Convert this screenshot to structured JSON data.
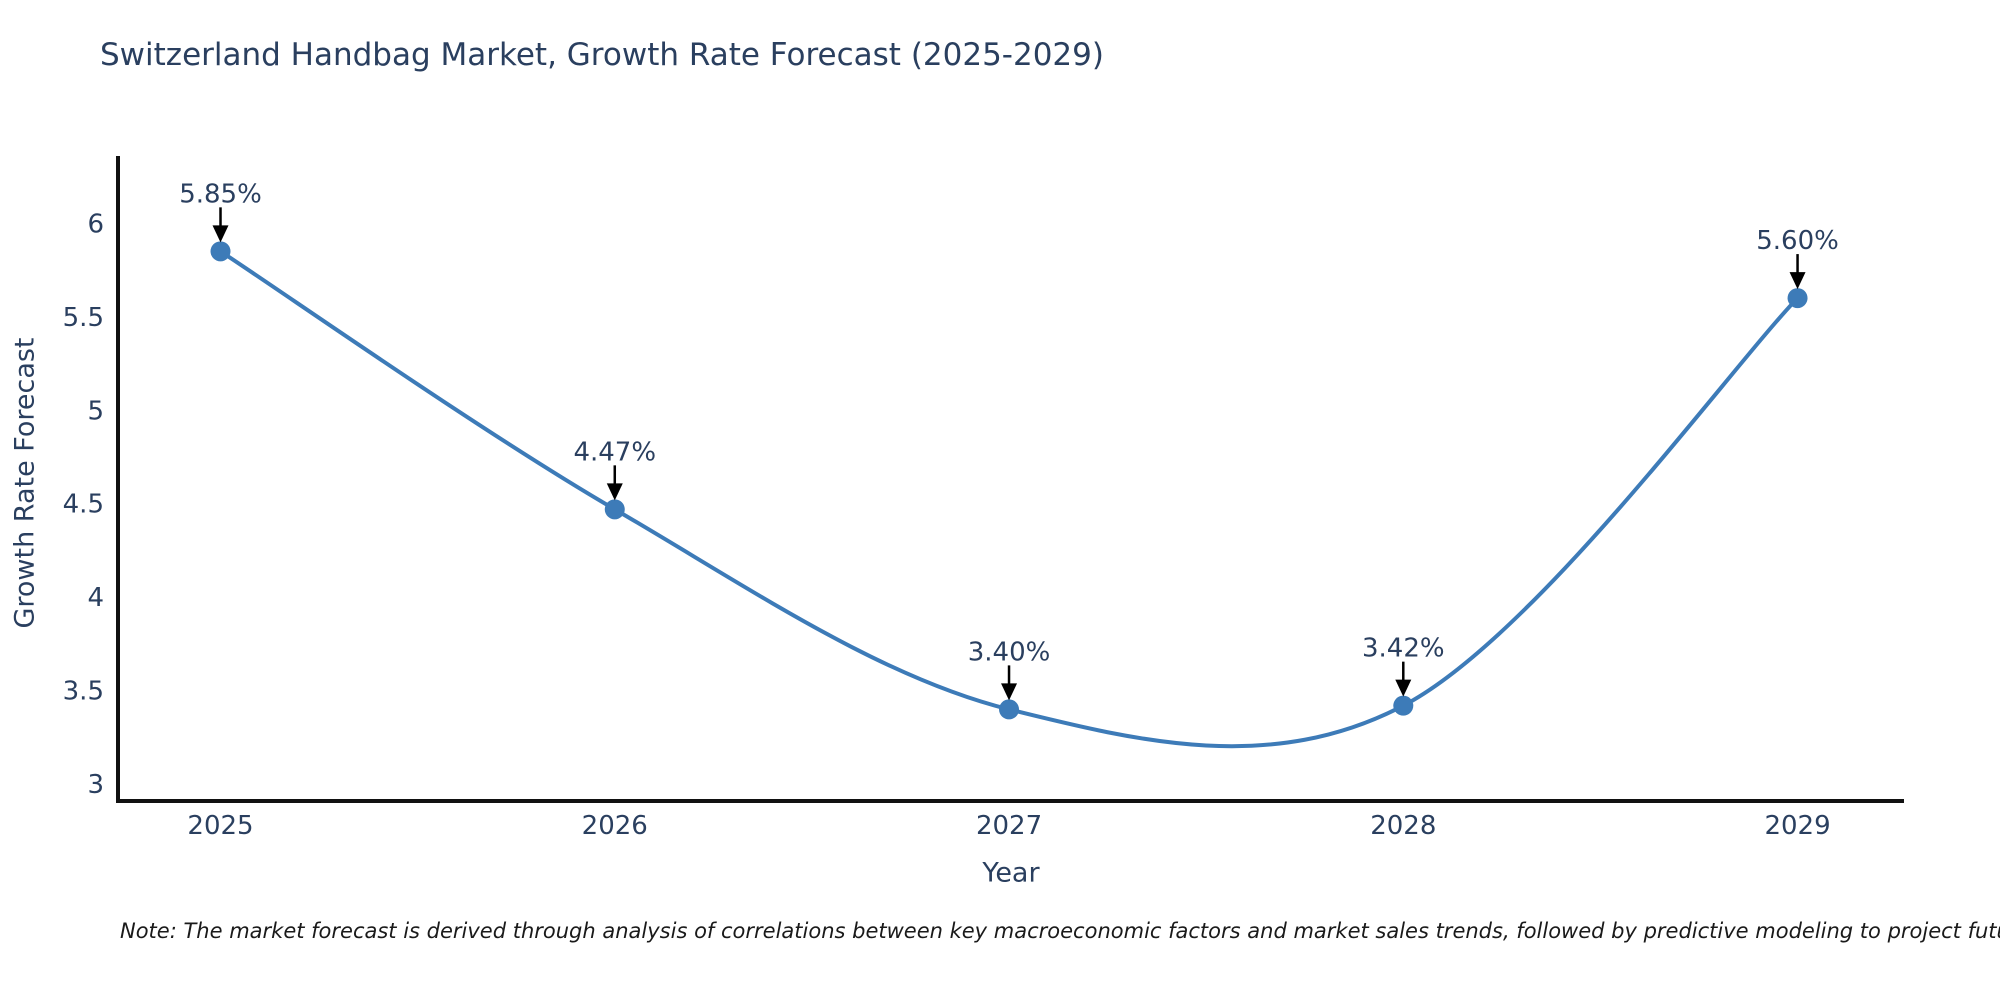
{
  "note": "Note: The market forecast is derived through analysis of correlations between key macroeconomic factors and market sales trends, followed by predictive modeling to project future sales",
  "colors": {
    "accent": "#3d7bb8",
    "axis_line": "#111111",
    "chart_text": "#2a3f5f",
    "note_text": "#1a1a1a",
    "annotation_arrow": "#000000",
    "background": "#ffffff"
  },
  "chart_data": {
    "type": "line",
    "line_shape": "spline",
    "title": "Switzerland Handbag Market, Growth Rate Forecast (2025-2029)",
    "xlabel": "Year",
    "ylabel": "Growth Rate Forecast",
    "x": [
      2025,
      2026,
      2027,
      2028,
      2029
    ],
    "values": [
      5.85,
      4.47,
      3.4,
      3.42,
      5.6
    ],
    "point_labels": [
      "5.85%",
      "4.47%",
      "3.40%",
      "3.42%",
      "5.60%"
    ],
    "x_tick_labels": [
      "2025",
      "2026",
      "2027",
      "2028",
      "2029"
    ],
    "y_ticks": [
      3,
      3.5,
      4,
      4.5,
      5,
      5.5,
      6
    ],
    "y_tick_labels": [
      "3",
      "3.5",
      "4",
      "4.5",
      "5",
      "5.5",
      "6"
    ],
    "xlim": [
      2024.74,
      2029.27
    ],
    "ylim": [
      2.91,
      6.36
    ],
    "grid": false,
    "legend": "none"
  }
}
